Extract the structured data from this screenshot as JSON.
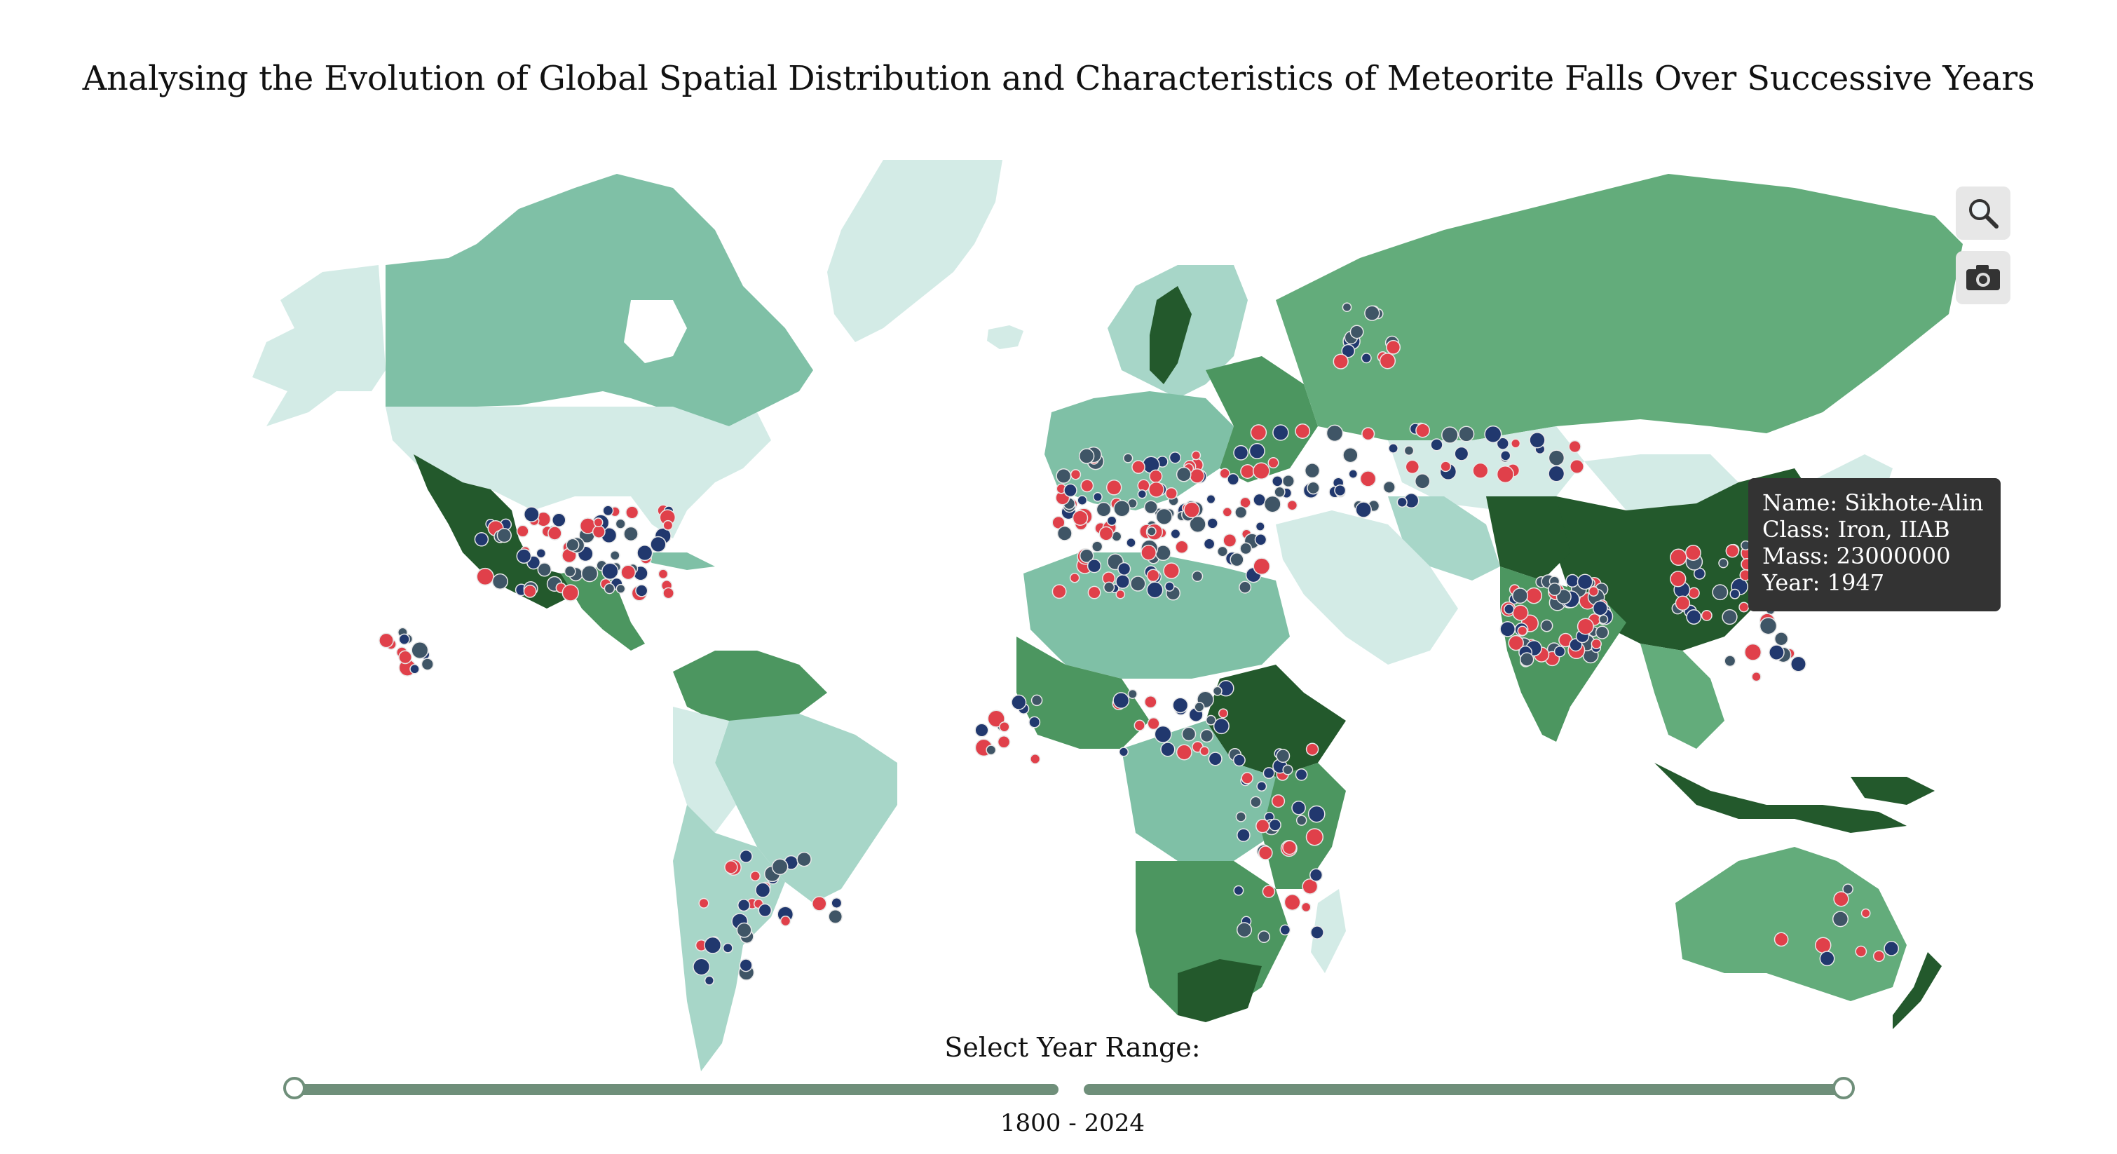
{
  "title": "Analysing the Evolution of Global Spatial Distribution and Characteristics of Meteorite Falls Over Successive Years",
  "toolbar": {
    "zoom_icon": "magnifier-icon",
    "camera_icon": "camera-icon"
  },
  "tooltip": {
    "name_line": "Name: Sikhote-Alin",
    "class_line": "Class: Iron, IIAB",
    "mass_line": "Mass: 23000000",
    "year_line": "Year: 1947"
  },
  "slider": {
    "label": "Select Year Range:",
    "min_year": 1800,
    "max_year": 2024,
    "range_text": "1800 - 2024"
  },
  "colors": {
    "very_light": "#d3ebe6",
    "light": "#a7d6c8",
    "medium_light": "#7fc0a6",
    "medium": "#63ac7b",
    "medium_dark": "#4c9660",
    "dark": "#23592c",
    "marker_red": "#e0404a",
    "marker_blue": "#21386e",
    "marker_slate": "#3f5566",
    "slider_track": "#6f8f7a"
  }
}
